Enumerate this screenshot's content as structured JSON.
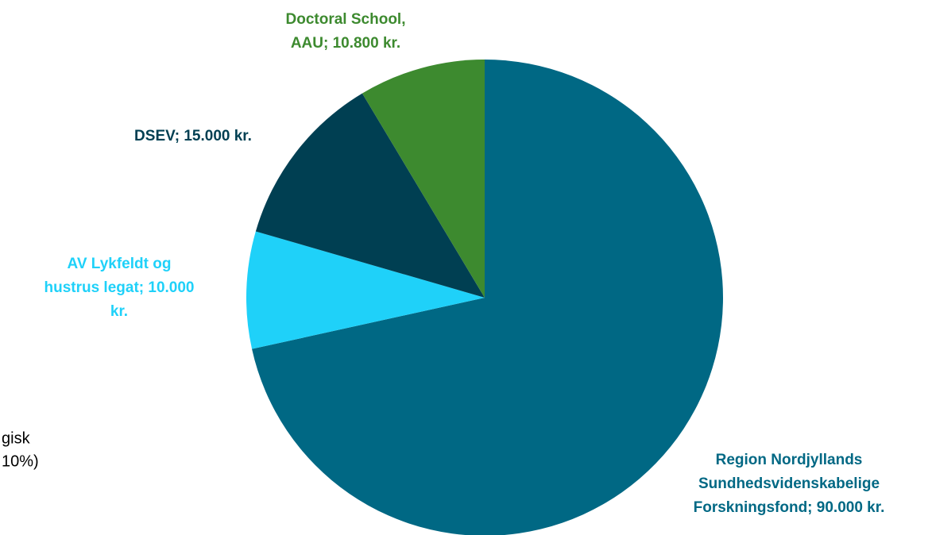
{
  "chart_data": {
    "type": "pie",
    "categories": [
      "Region Nordjyllands Sundhedsvidenskabelige Forskningsfond",
      "AV Lykfeldt og hustrus legat",
      "DSEV",
      "Doctoral School, AAU"
    ],
    "values": [
      90000,
      10000,
      15000,
      10800
    ],
    "labels": [
      [
        "Region Nordjyllands",
        "Sundhedsvidenskabelige",
        "Forskningsfond; 90.000 kr."
      ],
      [
        "AV Lykfeldt og",
        "hustrus legat; 10.000",
        "kr."
      ],
      [
        "DSEV; 15.000 kr."
      ],
      [
        "Doctoral School,",
        "AAU; 10.800 kr."
      ]
    ],
    "colors": [
      "#006884",
      "#1fd1f9",
      "#003f52",
      "#3d8a2f"
    ],
    "annotations": [
      "gisk",
      "10%)"
    ]
  }
}
